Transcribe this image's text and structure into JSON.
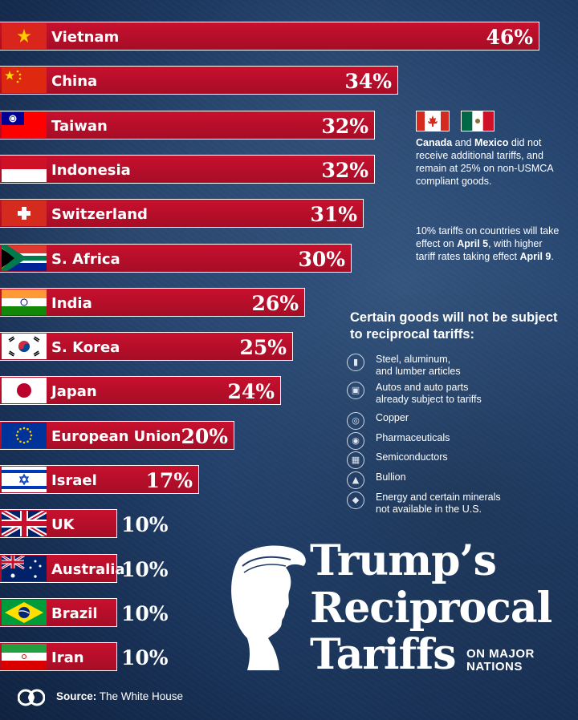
{
  "chart_data": {
    "type": "bar",
    "orientation": "horizontal",
    "title": "Trump's Reciprocal Tariffs",
    "subtitle": "ON MAJOR NATIONS",
    "xlim": [
      0,
      50
    ],
    "categories": [
      "Vietnam",
      "China",
      "Taiwan",
      "Indonesia",
      "Switzerland",
      "S. Africa",
      "India",
      "S. Korea",
      "Japan",
      "European Union",
      "Israel",
      "UK",
      "Australia",
      "Brazil",
      "Iran"
    ],
    "values": [
      46,
      34,
      32,
      32,
      31,
      30,
      26,
      25,
      24,
      20,
      17,
      10,
      10,
      10,
      10
    ],
    "value_labels": [
      "46%",
      "34%",
      "32%",
      "32%",
      "31%",
      "30%",
      "26%",
      "25%",
      "24%",
      "20%",
      "17%",
      "10%",
      "10%",
      "10%",
      "10%"
    ],
    "bar_color": "#c8102e"
  },
  "flags": [
    "vietnam",
    "china",
    "taiwan",
    "indonesia",
    "switzerland",
    "south-africa",
    "india",
    "south-korea",
    "japan",
    "european-union",
    "israel",
    "uk",
    "australia",
    "brazil",
    "iran"
  ],
  "canada_mexico_note": {
    "bold1": "Canada",
    "mid1": " and ",
    "bold2": "Mexico",
    "rest": " did not receive additional tariffs, and remain at 25% on non-USMCA compliant goods."
  },
  "effective_note": {
    "pre": "10% tariffs on countries will take effect on ",
    "bold1": "April 5",
    "mid": ", with higher tariff rates taking effect ",
    "bold2": "April 9",
    "end": "."
  },
  "exempt_goods": {
    "title": "Certain goods will not be subject to reciprocal tariffs:",
    "items": [
      {
        "line1": "Steel, aluminum,",
        "line2": "and lumber articles",
        "icon": "beam-icon"
      },
      {
        "line1": "Autos and auto parts",
        "line2": "already subject to tariffs",
        "icon": "car-icon"
      },
      {
        "line1": "Copper",
        "line2": "",
        "icon": "coil-icon"
      },
      {
        "line1": "Pharmaceuticals",
        "line2": "",
        "icon": "pill-icon"
      },
      {
        "line1": "Semiconductors",
        "line2": "",
        "icon": "chip-icon"
      },
      {
        "line1": "Bullion",
        "line2": "",
        "icon": "gold-bars-icon"
      },
      {
        "line1": "Energy and certain minerals",
        "line2": "not available in the U.S.",
        "icon": "mineral-icon"
      }
    ]
  },
  "headline": {
    "line1": "Trump’s",
    "line2": "Reciprocal",
    "line3": "Tariffs",
    "sub1": "ON MAJOR",
    "sub2": "NATIONS"
  },
  "source": {
    "label": "Source:",
    "value": " The White House"
  }
}
